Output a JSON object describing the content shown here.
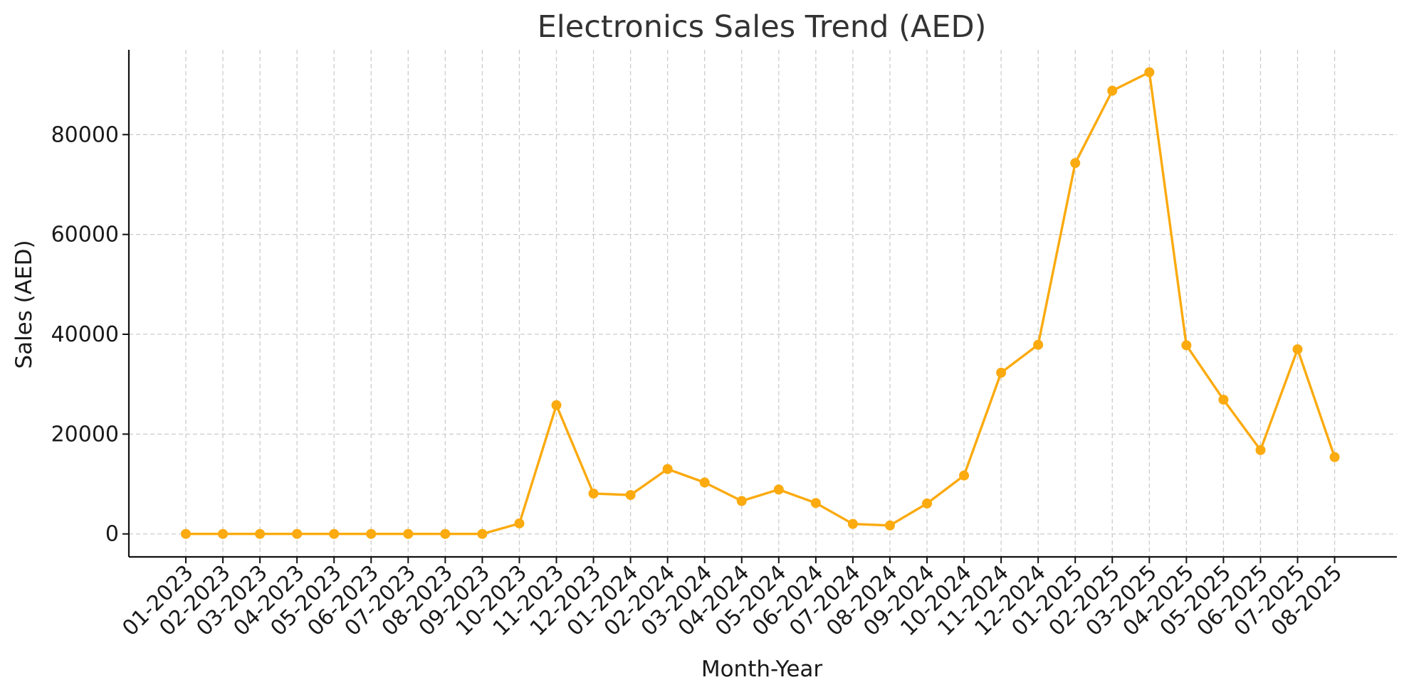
{
  "chart_data": {
    "type": "line",
    "title": "Electronics Sales Trend (AED)",
    "xlabel": "Month-Year",
    "ylabel": "Sales (AED)",
    "ylim": [
      -4600,
      97000
    ],
    "yticks": [
      0,
      20000,
      40000,
      60000,
      80000
    ],
    "grid": true,
    "legend": "none",
    "color": "#FBAA0F",
    "categories": [
      "01-2023",
      "02-2023",
      "03-2023",
      "04-2023",
      "05-2023",
      "06-2023",
      "07-2023",
      "08-2023",
      "09-2023",
      "10-2023",
      "11-2023",
      "12-2023",
      "01-2024",
      "02-2024",
      "03-2024",
      "04-2024",
      "05-2024",
      "06-2024",
      "07-2024",
      "08-2024",
      "09-2024",
      "10-2024",
      "11-2024",
      "12-2024",
      "01-2025",
      "02-2025",
      "03-2025",
      "04-2025",
      "05-2025",
      "06-2025",
      "07-2025",
      "08-2025"
    ],
    "series": [
      {
        "values": [
          0,
          0,
          0,
          0,
          0,
          0,
          0,
          0,
          0,
          2100,
          25800,
          8100,
          7800,
          13000,
          10300,
          6600,
          8900,
          6200,
          2000,
          1700,
          6100,
          11700,
          32300,
          37900,
          74300,
          88800,
          92500,
          37800,
          26900,
          16800,
          37000,
          15400
        ]
      }
    ]
  }
}
